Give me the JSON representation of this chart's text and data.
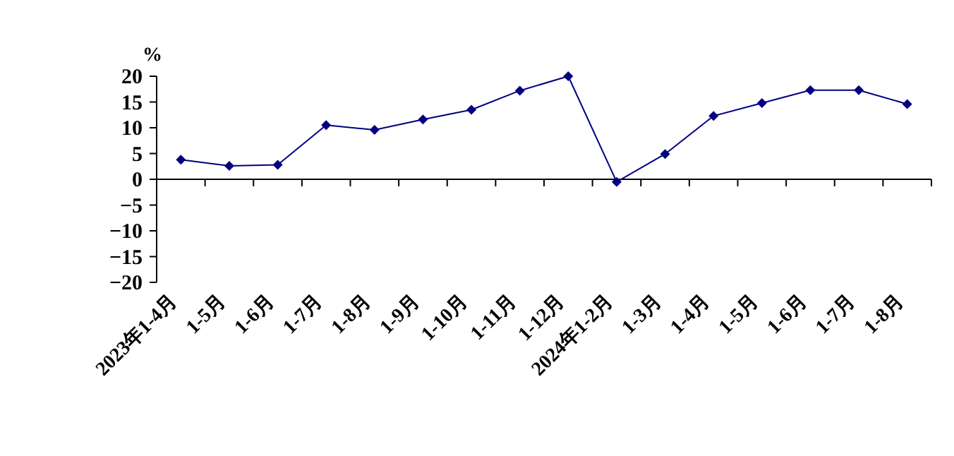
{
  "chart_data": {
    "type": "line",
    "ylabel": "%",
    "categories": [
      "2023年1-4月",
      "1-5月",
      "1-6月",
      "1-7月",
      "1-8月",
      "1-9月",
      "1-10月",
      "1-11月",
      "1-12月",
      "2024年1-2月",
      "1-3月",
      "1-4月",
      "1-5月",
      "1-6月",
      "1-7月",
      "1-8月"
    ],
    "series": [
      {
        "color": "#000080",
        "values": [
          3.8,
          2.6,
          2.8,
          10.5,
          9.6,
          11.6,
          13.5,
          17.2,
          20.0,
          -0.5,
          4.9,
          12.3,
          14.8,
          17.3,
          17.3,
          14.6
        ]
      }
    ],
    "ylim": [
      -20,
      20
    ],
    "yticks": [
      -20,
      -15,
      -10,
      -5,
      0,
      5,
      10,
      15,
      20
    ],
    "marker": "diamond"
  }
}
